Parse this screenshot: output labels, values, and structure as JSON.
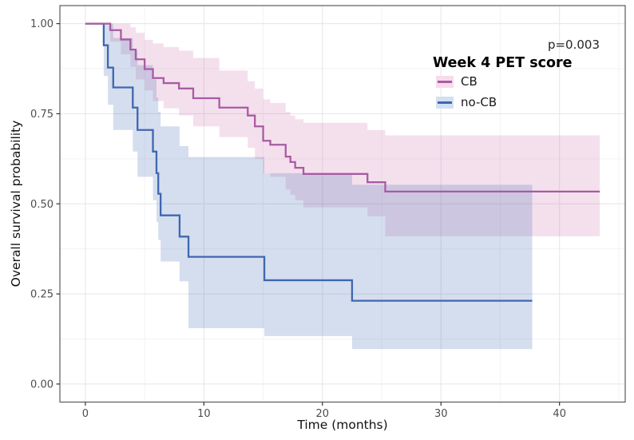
{
  "figure": {
    "p_value_label": "p=0.003"
  },
  "chart_data": {
    "type": "line",
    "subtype": "kaplan-meier-step-curves-with-confidence-bands",
    "title": "",
    "xlabel": "Time (months)",
    "ylabel": "Overall survival probability",
    "annotation_p_value": "p=0.003",
    "xlim": [
      0,
      45.5
    ],
    "ylim": [
      0,
      1
    ],
    "grid": {
      "on": true,
      "major_color": "#e5e5e5",
      "minor_color": "#f3f3f3"
    },
    "panel_border_color": "#5b5b5b",
    "tick_color": "#333333",
    "x_ticks": {
      "values": [
        0,
        10,
        20,
        30,
        40
      ],
      "labels": [
        "0",
        "10",
        "20",
        "30",
        "40"
      ]
    },
    "y_ticks": {
      "values": [
        0,
        0.25,
        0.5,
        0.75,
        1.0
      ],
      "labels": [
        "0.00",
        "0.25",
        "0.50",
        "0.75",
        "1.00"
      ]
    },
    "x_minor": [
      5,
      15,
      25,
      35,
      45
    ],
    "y_minor": [
      0.125,
      0.375,
      0.625,
      0.875
    ],
    "legend": {
      "title": "Week 4 PET score",
      "position": "top-right-inside",
      "entries": [
        {
          "label": "CB",
          "line_color": "#a85ba3",
          "key_fill": "#f6dcea"
        },
        {
          "label": "no-CB",
          "line_color": "#3f67b1",
          "key_fill": "#d3e0f1"
        }
      ]
    },
    "series": [
      {
        "name": "CB",
        "color": "#a85ba3",
        "band_fill": "rgba(200,100,165,0.20)",
        "end_time": 43.4,
        "steps": [
          [
            0,
            1.0
          ],
          [
            2.1,
            0.982
          ],
          [
            3.0,
            0.956
          ],
          [
            3.8,
            0.928
          ],
          [
            4.25,
            0.901
          ],
          [
            5.0,
            0.874
          ],
          [
            5.7,
            0.849
          ],
          [
            6.6,
            0.835
          ],
          [
            7.9,
            0.82
          ],
          [
            9.1,
            0.793
          ],
          [
            11.3,
            0.767
          ],
          [
            13.7,
            0.745
          ],
          [
            14.3,
            0.715
          ],
          [
            15.0,
            0.675
          ],
          [
            15.6,
            0.664
          ],
          [
            16.9,
            0.631
          ],
          [
            17.3,
            0.616
          ],
          [
            17.7,
            0.6
          ],
          [
            18.4,
            0.583
          ],
          [
            23.8,
            0.56
          ],
          [
            25.3,
            0.534
          ]
        ],
        "ci": [
          [
            2.1,
            0.95,
            1.0
          ],
          [
            3.0,
            0.915,
            1.0
          ],
          [
            3.8,
            0.88,
            0.99
          ],
          [
            4.25,
            0.845,
            0.975
          ],
          [
            5.0,
            0.815,
            0.955
          ],
          [
            5.7,
            0.785,
            0.945
          ],
          [
            6.6,
            0.765,
            0.935
          ],
          [
            7.9,
            0.745,
            0.925
          ],
          [
            9.1,
            0.715,
            0.905
          ],
          [
            11.3,
            0.685,
            0.87
          ],
          [
            13.7,
            0.655,
            0.84
          ],
          [
            14.3,
            0.625,
            0.82
          ],
          [
            15.0,
            0.585,
            0.79
          ],
          [
            15.6,
            0.575,
            0.78
          ],
          [
            16.9,
            0.54,
            0.755
          ],
          [
            17.3,
            0.525,
            0.745
          ],
          [
            17.7,
            0.51,
            0.735
          ],
          [
            18.4,
            0.49,
            0.725
          ],
          [
            23.8,
            0.465,
            0.705
          ],
          [
            25.3,
            0.41,
            0.69
          ]
        ]
      },
      {
        "name": "no-CB",
        "color": "#3f67b1",
        "band_fill": "rgba(63,103,177,0.22)",
        "end_time": 37.7,
        "steps": [
          [
            0,
            1.0
          ],
          [
            1.55,
            0.94
          ],
          [
            1.9,
            0.878
          ],
          [
            2.35,
            0.823
          ],
          [
            4.0,
            0.767
          ],
          [
            4.4,
            0.705
          ],
          [
            5.7,
            0.645
          ],
          [
            6.0,
            0.585
          ],
          [
            6.15,
            0.528
          ],
          [
            6.35,
            0.468
          ],
          [
            7.95,
            0.409
          ],
          [
            8.7,
            0.353
          ],
          [
            15.1,
            0.288
          ],
          [
            22.5,
            0.231
          ]
        ],
        "ci": [
          [
            1.55,
            0.855,
            1.0
          ],
          [
            1.9,
            0.775,
            1.0
          ],
          [
            2.35,
            0.705,
            0.96
          ],
          [
            4.0,
            0.645,
            0.925
          ],
          [
            4.4,
            0.575,
            0.885
          ],
          [
            5.7,
            0.51,
            0.845
          ],
          [
            6.0,
            0.45,
            0.795
          ],
          [
            6.15,
            0.4,
            0.755
          ],
          [
            6.35,
            0.34,
            0.715
          ],
          [
            7.95,
            0.285,
            0.66
          ],
          [
            8.7,
            0.155,
            0.63
          ],
          [
            15.1,
            0.133,
            0.585
          ],
          [
            22.5,
            0.097,
            0.553
          ]
        ]
      }
    ]
  }
}
